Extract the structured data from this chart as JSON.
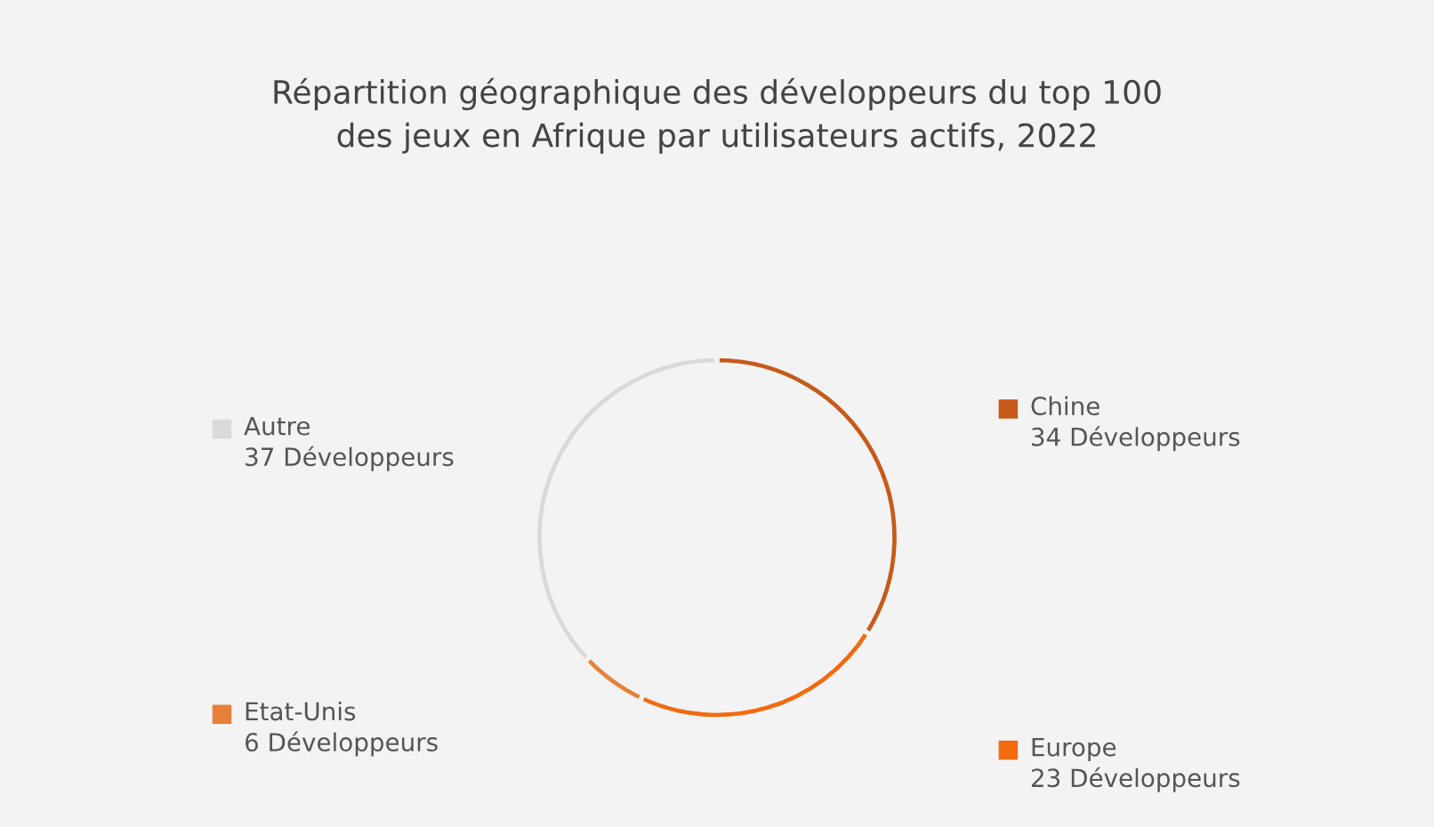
{
  "chart_data": {
    "type": "donut",
    "title": "Répartition géographique des développeurs du top 100\ndes jeux en Afrique par utilisateurs actifs, 2022",
    "categories": [
      "Chine",
      "Europe",
      "Etat-Unis",
      "Autre"
    ],
    "values": [
      34,
      23,
      6,
      37
    ],
    "value_labels": [
      "34 Développeurs",
      "23 Développeurs",
      "6 Développeurs",
      "37 Développeurs"
    ],
    "colors": [
      "#c65a1a",
      "#f26b0f",
      "#e8803a",
      "#d9d9d9"
    ],
    "legend": "bottom left"
  }
}
